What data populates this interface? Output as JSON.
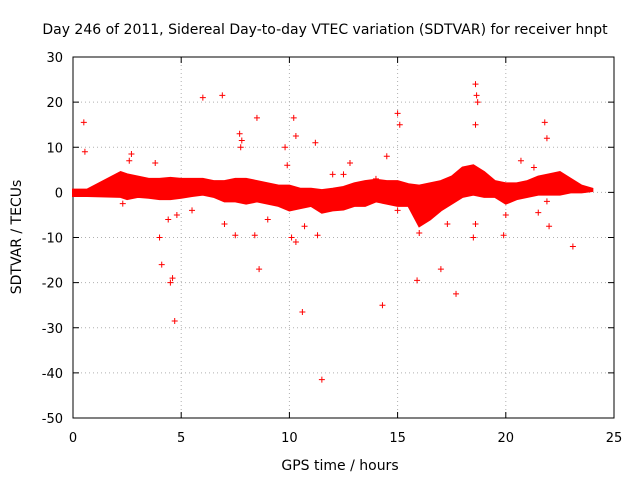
{
  "chart_data": {
    "type": "scatter",
    "title": "Day 246 of 2011, Sidereal Day-to-day VTEC variation (SDTVAR) for receiver hnpt",
    "xlabel": "GPS time / hours",
    "ylabel": "SDTVAR / TECUs",
    "xlim": [
      0,
      25
    ],
    "ylim": [
      -50,
      30
    ],
    "x_ticks": [
      0,
      5,
      10,
      15,
      20,
      25
    ],
    "y_ticks": [
      -50,
      -40,
      -30,
      -20,
      -10,
      0,
      10,
      20,
      30
    ],
    "grid": true,
    "marker": "+",
    "series_color": "#ff0000",
    "series": [
      {
        "name": "SDTVAR",
        "band": {
          "description": "dense band of points",
          "x": [
            0.0,
            0.2,
            0.4,
            0.6,
            0.65,
            2.2,
            2.5,
            3.0,
            3.5,
            4.0,
            4.5,
            5.0,
            5.5,
            6.0,
            6.5,
            7.0,
            7.5,
            8.0,
            8.5,
            9.0,
            9.5,
            10.0,
            10.5,
            11.0,
            11.5,
            12.0,
            12.5,
            13.0,
            13.5,
            14.0,
            14.5,
            15.0,
            15.5,
            16.0,
            16.5,
            17.0,
            17.5,
            18.0,
            18.5,
            19.0,
            19.5,
            20.0,
            20.5,
            21.0,
            21.5,
            22.0,
            22.5,
            23.0,
            23.5,
            24.0
          ],
          "low": [
            -0.8,
            -0.8,
            -0.8,
            -0.8,
            -0.8,
            -1.0,
            -1.5,
            -1.0,
            -1.2,
            -1.5,
            -1.5,
            -1.2,
            -0.8,
            -0.5,
            -1.0,
            -2.0,
            -2.0,
            -2.5,
            -2.0,
            -2.5,
            -3.0,
            -4.0,
            -3.5,
            -3.0,
            -4.5,
            -4.0,
            -3.8,
            -3.0,
            -3.0,
            -2.0,
            -2.5,
            -3.0,
            -3.0,
            -7.5,
            -6.0,
            -4.0,
            -2.5,
            -1.0,
            -0.5,
            -1.0,
            -1.0,
            -2.5,
            -1.5,
            -1.0,
            -0.5,
            -0.5,
            -0.5,
            0.0,
            0.0,
            0.3
          ],
          "high": [
            0.6,
            0.6,
            0.6,
            0.6,
            0.6,
            4.5,
            4.0,
            3.5,
            3.0,
            3.0,
            3.2,
            3.0,
            3.0,
            3.0,
            2.5,
            2.5,
            3.0,
            3.0,
            2.5,
            2.0,
            1.5,
            1.5,
            0.8,
            0.8,
            0.5,
            0.8,
            1.2,
            2.0,
            2.5,
            2.8,
            2.5,
            2.5,
            1.8,
            1.5,
            2.0,
            2.5,
            3.5,
            5.5,
            6.0,
            4.5,
            2.5,
            2.0,
            2.0,
            2.5,
            3.5,
            4.0,
            4.5,
            3.0,
            1.5,
            0.8
          ]
        },
        "outliers": [
          {
            "x": 0.5,
            "y": 15.5
          },
          {
            "x": 0.55,
            "y": 9.0
          },
          {
            "x": 2.3,
            "y": -2.5
          },
          {
            "x": 2.6,
            "y": 7.0
          },
          {
            "x": 2.7,
            "y": 8.5
          },
          {
            "x": 3.8,
            "y": 6.5
          },
          {
            "x": 4.0,
            "y": -10.0
          },
          {
            "x": 4.1,
            "y": -16.0
          },
          {
            "x": 4.5,
            "y": -20.0
          },
          {
            "x": 4.6,
            "y": -19.0
          },
          {
            "x": 4.7,
            "y": -28.5
          },
          {
            "x": 4.4,
            "y": -6.0
          },
          {
            "x": 4.8,
            "y": -5.0
          },
          {
            "x": 5.5,
            "y": -4.0
          },
          {
            "x": 6.0,
            "y": 21.0
          },
          {
            "x": 6.9,
            "y": 21.5
          },
          {
            "x": 7.0,
            "y": -7.0
          },
          {
            "x": 7.5,
            "y": -9.5
          },
          {
            "x": 7.7,
            "y": 13.0
          },
          {
            "x": 7.8,
            "y": 11.5
          },
          {
            "x": 7.75,
            "y": 10.0
          },
          {
            "x": 8.4,
            "y": -9.5
          },
          {
            "x": 8.5,
            "y": 16.5
          },
          {
            "x": 8.6,
            "y": -17.0
          },
          {
            "x": 9.0,
            "y": -6.0
          },
          {
            "x": 9.8,
            "y": 10.0
          },
          {
            "x": 9.9,
            "y": 6.0
          },
          {
            "x": 10.2,
            "y": 16.5
          },
          {
            "x": 10.3,
            "y": 12.5
          },
          {
            "x": 10.1,
            "y": -10.0
          },
          {
            "x": 10.3,
            "y": -11.0
          },
          {
            "x": 10.6,
            "y": -26.5
          },
          {
            "x": 10.7,
            "y": -7.5
          },
          {
            "x": 11.2,
            "y": 11.0
          },
          {
            "x": 11.3,
            "y": -9.5
          },
          {
            "x": 11.5,
            "y": -41.5
          },
          {
            "x": 12.0,
            "y": 4.0
          },
          {
            "x": 12.5,
            "y": 4.0
          },
          {
            "x": 12.8,
            "y": 6.5
          },
          {
            "x": 14.3,
            "y": -25.0
          },
          {
            "x": 14.5,
            "y": 8.0
          },
          {
            "x": 14.0,
            "y": 3.0
          },
          {
            "x": 15.0,
            "y": 17.5
          },
          {
            "x": 15.1,
            "y": 15.0
          },
          {
            "x": 15.0,
            "y": -4.0
          },
          {
            "x": 15.9,
            "y": -19.5
          },
          {
            "x": 16.0,
            "y": -9.0
          },
          {
            "x": 17.0,
            "y": -17.0
          },
          {
            "x": 17.7,
            "y": -22.5
          },
          {
            "x": 17.3,
            "y": -7.0
          },
          {
            "x": 18.6,
            "y": 24.0
          },
          {
            "x": 18.65,
            "y": 21.5
          },
          {
            "x": 18.7,
            "y": 20.0
          },
          {
            "x": 18.6,
            "y": 15.0
          },
          {
            "x": 18.5,
            "y": -10.0
          },
          {
            "x": 18.6,
            "y": -7.0
          },
          {
            "x": 19.9,
            "y": -9.5
          },
          {
            "x": 20.0,
            "y": -5.0
          },
          {
            "x": 20.7,
            "y": 7.0
          },
          {
            "x": 21.3,
            "y": 5.5
          },
          {
            "x": 21.5,
            "y": -4.5
          },
          {
            "x": 21.8,
            "y": 15.5
          },
          {
            "x": 21.9,
            "y": 12.0
          },
          {
            "x": 21.9,
            "y": -2.0
          },
          {
            "x": 22.0,
            "y": -7.5
          },
          {
            "x": 23.1,
            "y": -12.0
          }
        ]
      }
    ]
  }
}
